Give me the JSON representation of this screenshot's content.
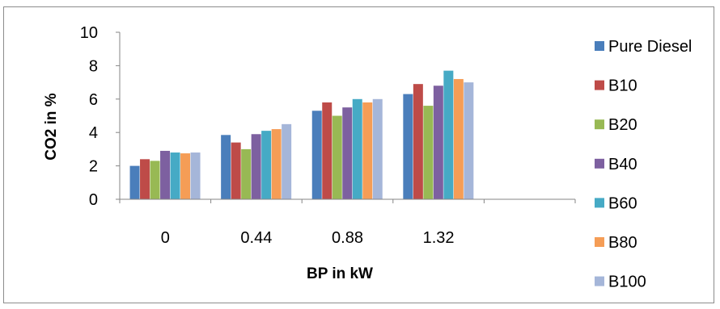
{
  "chart_data": {
    "type": "bar",
    "title": "",
    "xlabel": "BP in kW",
    "ylabel": "CO2 in %",
    "ylim": [
      0,
      10
    ],
    "yticks": [
      "0",
      "2",
      "4",
      "6",
      "8",
      "10"
    ],
    "categories": [
      "0",
      "0.44",
      "0.88",
      "1.32"
    ],
    "extra_empty_categories": 1,
    "grid": false,
    "legend_position": "right",
    "series": [
      {
        "name": "Pure Diesel",
        "color": "#4a7ebb",
        "values": [
          2.0,
          3.85,
          5.3,
          6.3
        ]
      },
      {
        "name": "B10",
        "color": "#be4b48",
        "values": [
          2.4,
          3.4,
          5.8,
          6.9
        ]
      },
      {
        "name": "B20",
        "color": "#98b954",
        "values": [
          2.3,
          3.0,
          5.0,
          5.6
        ]
      },
      {
        "name": "B40",
        "color": "#7d60a0",
        "values": [
          2.9,
          3.9,
          5.5,
          6.8
        ]
      },
      {
        "name": "B60",
        "color": "#46aac5",
        "values": [
          2.8,
          4.1,
          6.0,
          7.7
        ]
      },
      {
        "name": "B80",
        "color": "#f59d56",
        "values": [
          2.75,
          4.2,
          5.8,
          7.2
        ]
      },
      {
        "name": "B100",
        "color": "#a5b6d9",
        "values": [
          2.8,
          4.5,
          6.0,
          7.0
        ]
      }
    ]
  }
}
